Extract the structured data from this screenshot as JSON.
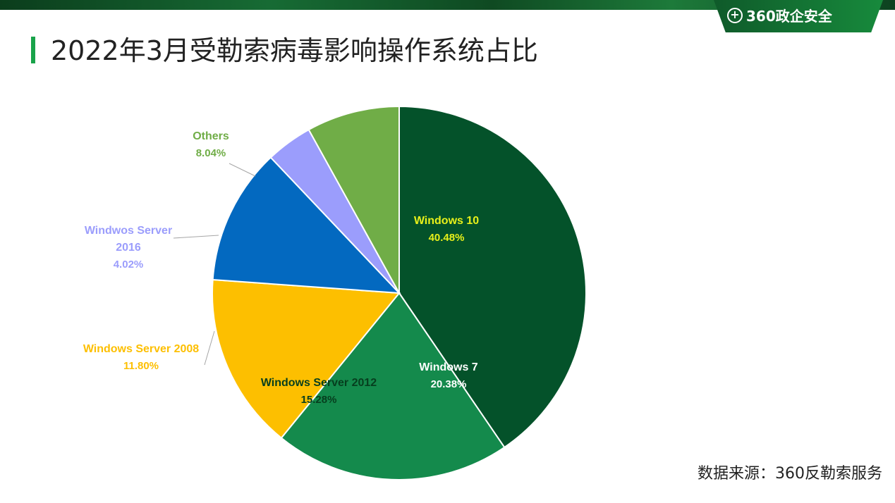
{
  "header": {
    "logo_icon": "plus-circle-icon",
    "logo_text": "360政企安全"
  },
  "page": {
    "title": "2022年3月受勒索病毒影响操作系统占比",
    "source": "数据来源：360反勒索服务"
  },
  "chart_data": {
    "type": "pie",
    "title": "2022年3月受勒索病毒影响操作系统占比",
    "start": "top",
    "direction": "clockwise",
    "slices": [
      {
        "label": "Windows 10",
        "value": 40.48,
        "display": "40.48%",
        "color": "#04522a",
        "label_color": "#e8f01a",
        "label_position": "inside"
      },
      {
        "label": "Windows 7",
        "value": 20.38,
        "display": "20.38%",
        "color": "#148a4c",
        "label_color": "#ffffff",
        "label_position": "inside"
      },
      {
        "label": "Windows Server 2012",
        "value": 15.28,
        "display": "15.28%",
        "color": "#fdbf00",
        "label_color": "#063e1e",
        "label_position": "inside"
      },
      {
        "label": "Windows Server 2008",
        "value": 11.8,
        "display": "11.80%",
        "color": "#0369c0",
        "label_color": "#fdbf00",
        "label_position": "outside"
      },
      {
        "label": "Windwos Server 2016",
        "value": 4.02,
        "display": "4.02%",
        "color": "#9b9dfc",
        "label_color": "#9b9dfc",
        "label_position": "outside"
      },
      {
        "label": "Others",
        "value": 8.04,
        "display": "8.04%",
        "color": "#70ad47",
        "label_color": "#70ad47",
        "label_position": "outside"
      }
    ]
  }
}
